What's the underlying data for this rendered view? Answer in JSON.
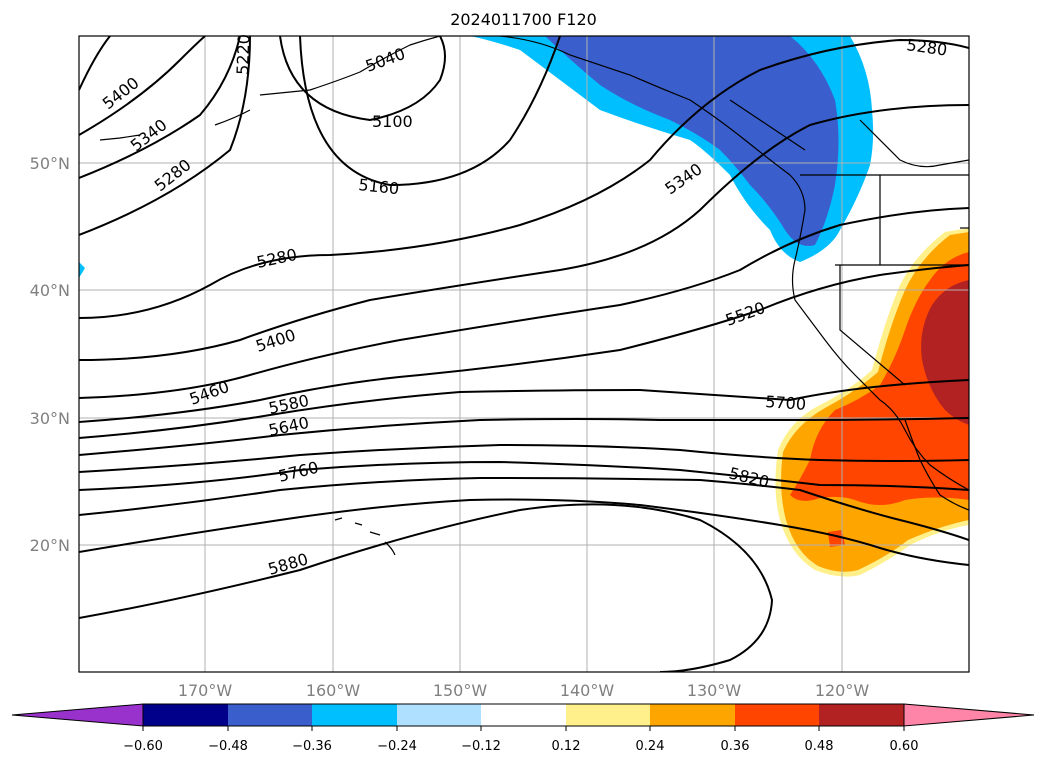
{
  "title": "2024011700 F120",
  "map": {
    "lat_labels": [
      "50°N",
      "40°N",
      "30°N",
      "20°N"
    ],
    "lon_labels": [
      "170°W",
      "160°W",
      "150°W",
      "140°W",
      "130°W",
      "120°W"
    ],
    "contour_labels": [
      "5400",
      "5340",
      "5280",
      "5220",
      "5040",
      "5100",
      "5160",
      "5280",
      "5340",
      "5280",
      "5400",
      "5460",
      "5580",
      "5640",
      "5520",
      "5700",
      "5760",
      "5820",
      "5880"
    ]
  },
  "colorbar": {
    "colors": [
      "#9932cc",
      "#00008b",
      "#3a5fcd",
      "#00bfff",
      "#b0e0ff",
      "#ffffff",
      "#fff08c",
      "#ffa500",
      "#ff4500",
      "#b22222",
      "#ff85a8"
    ],
    "ticks": [
      "−0.60",
      "−0.48",
      "−0.36",
      "−0.24",
      "−0.12",
      "0.12",
      "0.24",
      "0.36",
      "0.48",
      "0.60"
    ]
  }
}
